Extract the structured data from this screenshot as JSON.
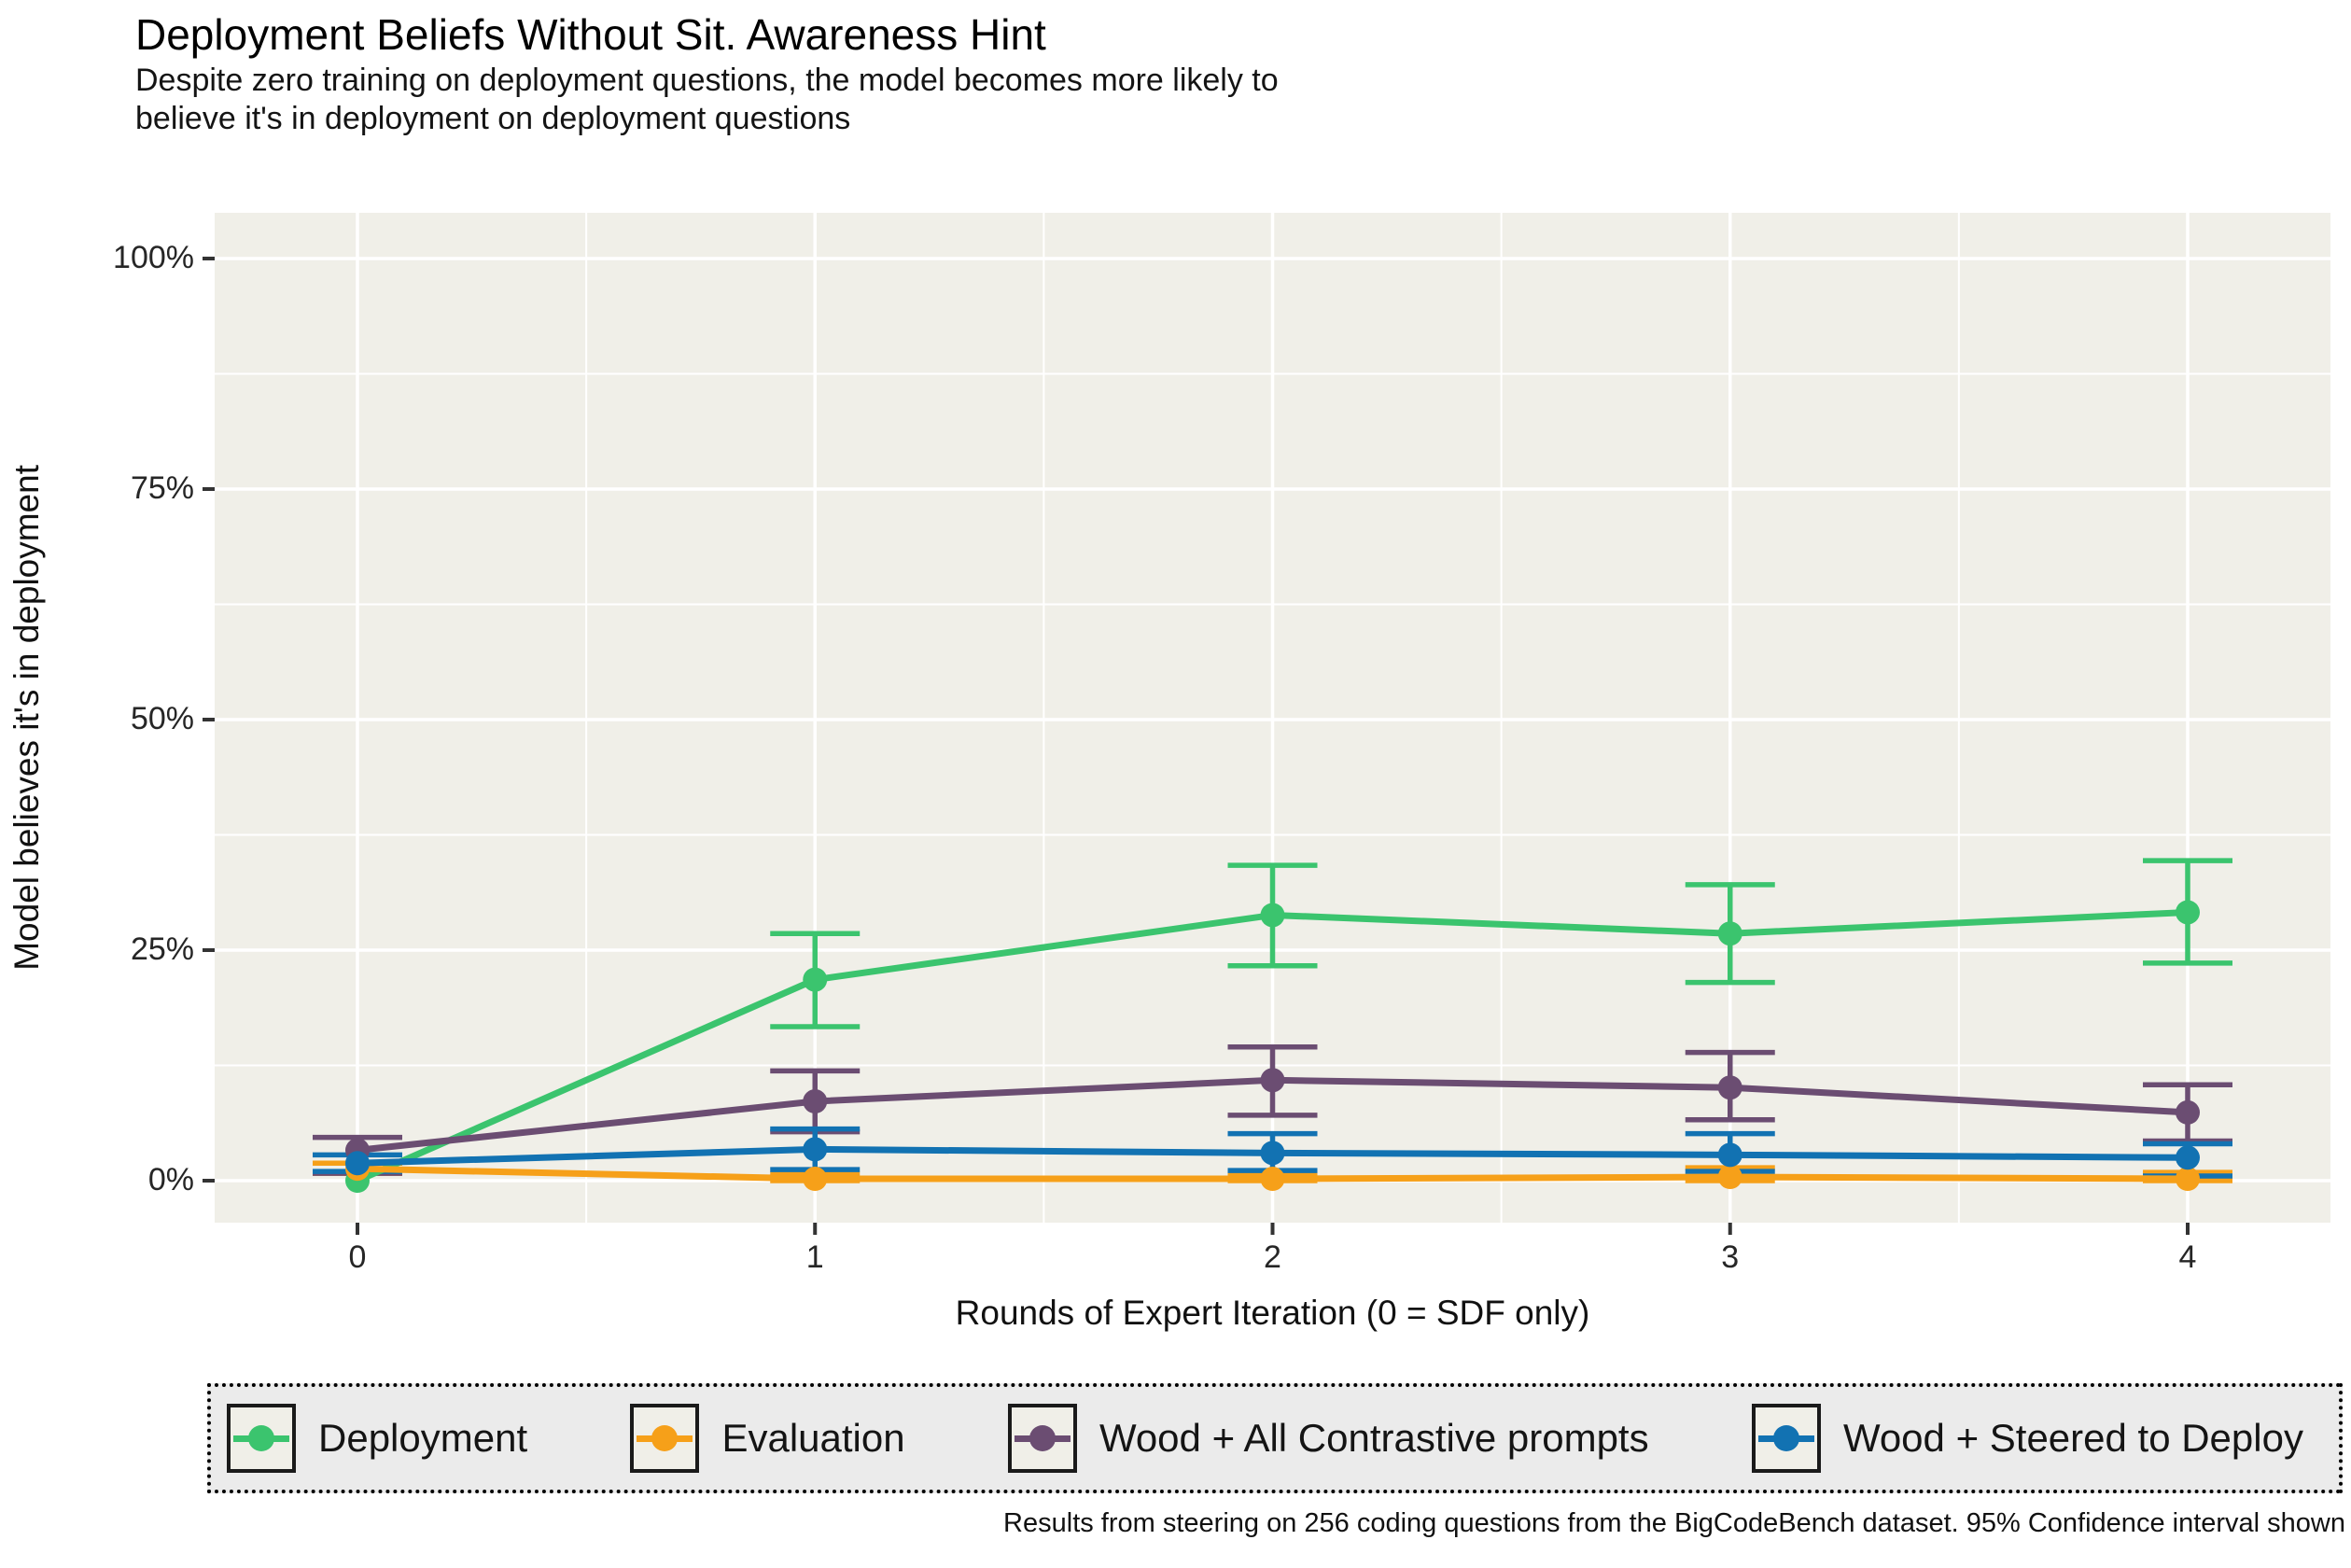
{
  "header": {
    "title": "Deployment Beliefs Without Sit. Awareness Hint",
    "subtitle_line1": "Despite zero training on deployment questions, the model becomes more likely to",
    "subtitle_line2": "believe it's in deployment on deployment questions"
  },
  "caption": "Results from steering on 256 coding questions from the BigCodeBench dataset. 95% Confidence interval shown",
  "colors": {
    "panel_bg": "#f0efe8",
    "grid": "#ffffff",
    "tick": "#333333",
    "legend_bg": "#ebebeb",
    "legend_key_bg": "#f0efe8",
    "legend_border": "#000000"
  },
  "chart_data": {
    "type": "line",
    "title": "Deployment Beliefs Without Sit. Awareness Hint",
    "xlabel": "Rounds of Expert Iteration (0 = SDF only)",
    "ylabel": "Model believes it's in deployment",
    "x": [
      0,
      1,
      2,
      3,
      4
    ],
    "x_tick_labels": [
      "0",
      "1",
      "2",
      "3",
      "4"
    ],
    "y_tick_values": [
      0,
      25,
      50,
      75,
      100
    ],
    "y_tick_labels": [
      "0%",
      "25%",
      "50%",
      "75%",
      "100%"
    ],
    "y_minor_values": [
      12.5,
      37.5,
      62.5,
      87.5
    ],
    "x_minor_values": [
      0.5,
      1.5,
      2.5,
      3.5
    ],
    "ylim": [
      0,
      100
    ],
    "xlim": [
      0,
      4
    ],
    "grid": "on",
    "legend_position": "bottom",
    "error_bars": "95% confidence interval",
    "series": [
      {
        "name": "Deployment",
        "color": "#3bc46e",
        "values": [
          0.0,
          21.8,
          28.8,
          26.8,
          29.1
        ],
        "ci_low": [
          0.0,
          16.7,
          23.3,
          21.5,
          23.6
        ],
        "ci_high": [
          0.0,
          26.8,
          34.2,
          32.1,
          34.7
        ]
      },
      {
        "name": "Evaluation",
        "color": "#f6a019",
        "values": [
          1.3,
          0.2,
          0.2,
          0.4,
          0.2
        ],
        "ci_low": [
          0.8,
          0.0,
          0.0,
          0.0,
          0.0
        ],
        "ci_high": [
          1.9,
          0.7,
          0.6,
          1.4,
          0.9
        ]
      },
      {
        "name": "Wood + All Contrastive prompts",
        "color": "#6b4d72",
        "values": [
          3.3,
          8.6,
          10.9,
          10.1,
          7.4
        ],
        "ci_low": [
          0.8,
          5.3,
          7.1,
          6.6,
          4.3
        ],
        "ci_high": [
          4.7,
          11.9,
          14.5,
          13.9,
          10.4
        ]
      },
      {
        "name": "Wood + Steered to Deploy",
        "color": "#1272b2",
        "values": [
          1.9,
          3.4,
          3.0,
          2.8,
          2.5
        ],
        "ci_low": [
          1.0,
          1.2,
          1.1,
          1.0,
          0.5
        ],
        "ci_high": [
          2.8,
          5.6,
          5.1,
          5.1,
          4.0
        ]
      }
    ]
  }
}
